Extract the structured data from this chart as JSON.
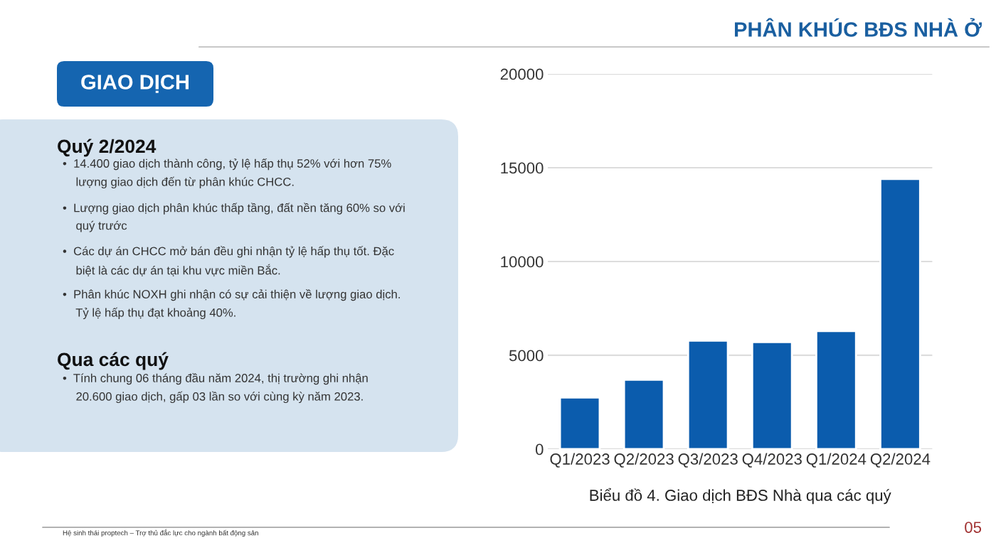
{
  "chart_data": [
    {
      "type": "other",
      "title": "PHÂN KHÚC BĐS NHÀ Ở",
      "subtitle": "GIAO DỊCH",
      "annotations": [
        "Quý 2/2024",
        "•  14.400 giao dịch thành công, tỷ lệ hấp thụ 52% với hơn 75%\n    lượng giao dịch đến từ phân khúc CHCC.",
        "•  Lượng giao dịch phân khúc thấp tầng, đất nền tăng 60% so với\n    quý trước",
        "•  Các dự án CHCC mở bán đều ghi nhận tỷ lệ hấp thụ tốt. Đặc\n    biệt là các dự án tại khu vực miền Bắc.",
        "•  Phân khúc NOXH ghi nhận có sự cải thiện về lượng giao dịch.\n    Tỷ lệ hấp thụ đạt khoảng 40%.",
        "Qua các quý",
        "•  Tính chung 06 tháng đầu năm 2024, thị trường ghi nhận\n    20.600 giao dịch, gấp 03 lần so với cùng kỳ năm 2023.",
        "Hệ sinh thái proptech – Trợ thủ đắc lực cho ngành bất động sản",
        "05"
      ]
    },
    {
      "type": "bar",
      "categories": [
        "Q1/2023",
        "Q2/2023",
        "Q3/2023",
        "Q4/2023",
        "Q1/2024",
        "Q2/2024"
      ],
      "values": [
        2750,
        3700,
        5780,
        5710,
        6290,
        14400
      ],
      "color": "#0b5cad",
      "ylim": [
        0,
        20000
      ],
      "yticks": [
        0,
        5000,
        10000,
        15000,
        20000
      ],
      "grid": "y",
      "annotations": [
        "Biểu đồ 4. Giao dịch BĐS Nhà qua các quý"
      ]
    }
  ]
}
